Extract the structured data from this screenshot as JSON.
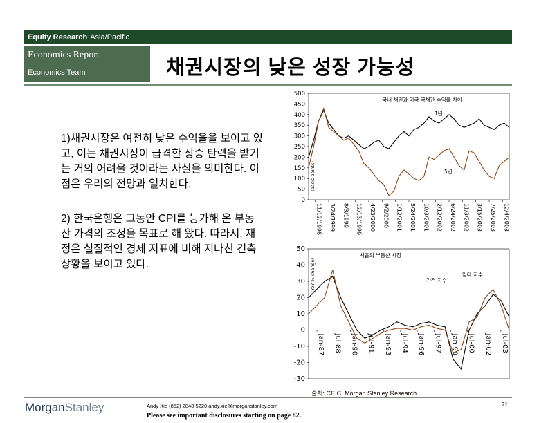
{
  "header": {
    "section": "Equity Research",
    "region": "Asia/Pacific",
    "report_type": "Economics Report",
    "team": "Economics Team",
    "title": "채권시장의 낮은 성장 가능성"
  },
  "body": {
    "point1": "1)채권시장은 여전히 낮은 수익율을 보이고 있고, 이는 채권시장이 급격한 상승 탄력을 받기는 거의 어려울 것이라는 사실을 의미한다. 이점은 우리의 전망과 일치한다.",
    "point2": "2) 한국은행은 그동안 CPI를 능가해 온 부동산 가격의 조정을 목표로 해 왔다. 따라서, 재정은 실질적인 경제 지표에 비해 지나친 긴축 상황을 보이고 있다."
  },
  "chart_data": [
    {
      "type": "line",
      "title": "국내 채권과 미국 국채간 수익율 차이",
      "ylabel": "(basis points)",
      "ylim": [
        0,
        500
      ],
      "yticks": [
        0,
        50,
        100,
        150,
        200,
        250,
        300,
        350,
        400,
        450,
        500
      ],
      "x_ticks": [
        "11/12/1998",
        "3/24/1999",
        "8/3/1999",
        "12/13/1999",
        "4/23/2000",
        "9/2/2000",
        "1/12/2001",
        "5/24/2001",
        "10/3/2001",
        "2/12/2002",
        "6/24/2002",
        "11/3/2002",
        "3/15/2003",
        "7/25/2003",
        "12/4/2003"
      ],
      "series": [
        {
          "name": "1년",
          "color": "#000000",
          "values": [
            200,
            280,
            370,
            420,
            360,
            330,
            300,
            290,
            300,
            280,
            260,
            240,
            250,
            270,
            280,
            250,
            240,
            270,
            300,
            320,
            300,
            330,
            340,
            360,
            390,
            370,
            360,
            380,
            400,
            380,
            350,
            340,
            350,
            360,
            380,
            350,
            340,
            330,
            350,
            360,
            340
          ]
        },
        {
          "name": "5년",
          "color": "#8b4513",
          "values": [
            150,
            250,
            370,
            430,
            340,
            320,
            300,
            280,
            290,
            260,
            230,
            170,
            150,
            120,
            90,
            70,
            20,
            40,
            110,
            140,
            120,
            100,
            90,
            110,
            200,
            190,
            210,
            230,
            240,
            200,
            160,
            140,
            230,
            220,
            180,
            140,
            110,
            100,
            160,
            180,
            200
          ]
        }
      ]
    },
    {
      "type": "line",
      "title": "서울의 부동산 시장",
      "ylabel": "(YoY % change)",
      "ylim": [
        -30,
        50
      ],
      "yticks": [
        -30,
        -20,
        -10,
        0,
        10,
        20,
        30,
        40,
        50
      ],
      "x_ticks": [
        "Jan-87",
        "Jul-88",
        "Jan-90",
        "Jul-91",
        "Jan-93",
        "Jul-94",
        "Jan-96",
        "Jul-97",
        "Jan-99",
        "Jul-00",
        "Jan-02",
        "Jul-03"
      ],
      "series": [
        {
          "name": "임대 지수",
          "color": "#000000",
          "values": [
            20,
            25,
            30,
            33,
            20,
            10,
            0,
            -5,
            -3,
            0,
            2,
            5,
            3,
            2,
            4,
            5,
            3,
            2,
            -18,
            -24,
            0,
            10,
            15,
            22,
            18,
            8
          ]
        },
        {
          "name": "가격 지수",
          "color": "#8b4513",
          "values": [
            10,
            15,
            20,
            37,
            15,
            5,
            -5,
            -8,
            -5,
            -2,
            0,
            1,
            1,
            0,
            2,
            3,
            1,
            0,
            -14,
            -12,
            5,
            8,
            20,
            25,
            15,
            0
          ]
        }
      ]
    }
  ],
  "source": "출처: CEIC, Morgan Stanley Research",
  "footer": {
    "logo_main": "Morgan",
    "logo_second": "Stanley",
    "contact": "Andy Xie (852) 2848 5220  andy.xie@morganstanley.com",
    "disclosure": "Please see important disclosures starting on page 82.",
    "page_number": "71"
  }
}
